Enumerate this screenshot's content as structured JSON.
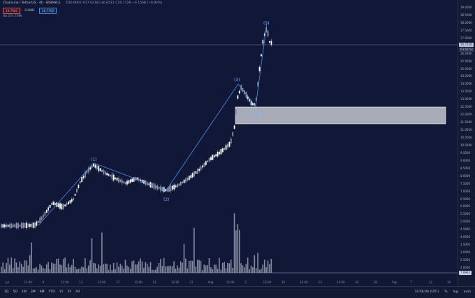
{
  "header": {
    "title": "ChainLink / TetherUS · 4h · BINANCE",
    "ohlc": "O16.9007 H17.0218 L16.6511 C16.7729 −0.1568 (−0.92%)",
    "sell_price": "16.7681",
    "spread": "0.0081",
    "buy_price": "16.7762",
    "volume": "Vol  574.769K"
  },
  "price_axis": {
    "ticks": [
      "19.0000",
      "18.5000",
      "18.0000",
      "17.5000",
      "17.0000",
      "16.5000",
      "16.0000",
      "15.5000",
      "15.0000",
      "14.5000",
      "14.0000",
      "13.5000",
      "13.0000",
      "12.5000",
      "12.0000",
      "11.5000",
      "11.0000",
      "10.5000",
      "10.0000",
      "9.5000",
      "9.0000",
      "8.5000",
      "8.0000",
      "7.5000",
      "7.0000",
      "6.5000",
      "6.0000",
      "5.5000",
      "5.0000",
      "4.5000",
      "4.0000",
      "3.5000",
      "3.0000",
      "2.5000",
      "2.0000"
    ],
    "current_tag": "16.7729",
    "countdown_tag": "03:03:54",
    "volume_tag": "7.8962"
  },
  "time_axis": {
    "labels": [
      "Jul",
      "12:00",
      "9",
      "12:00",
      "13",
      "12:00",
      "17",
      "12:00",
      "21",
      "12:00",
      "27",
      "Aug",
      "12:00",
      "5",
      "12:00",
      "10",
      "12:00",
      "13",
      "12:00",
      "24",
      "28",
      "Sep",
      "7",
      "12",
      "16"
    ]
  },
  "waves": {
    "w1": "(1)",
    "w2": "(2)",
    "w3": "(3)",
    "w4": "(4)",
    "w5": "(5)"
  },
  "bottom_bar": {
    "ranges": [
      "1D",
      "5D",
      "1M",
      "3M",
      "6M",
      "YTD",
      "1Y",
      "5Y",
      "All"
    ],
    "clock": "10:56:06 (UTC)",
    "percent": "%",
    "log": "log",
    "auto": "auto"
  },
  "colors": {
    "background": "#101737",
    "candle": "#d9dde8",
    "wave_line": "#4f8fe0",
    "zone_fill": "#b9bdc8",
    "zone_border": "#ffffff"
  }
}
